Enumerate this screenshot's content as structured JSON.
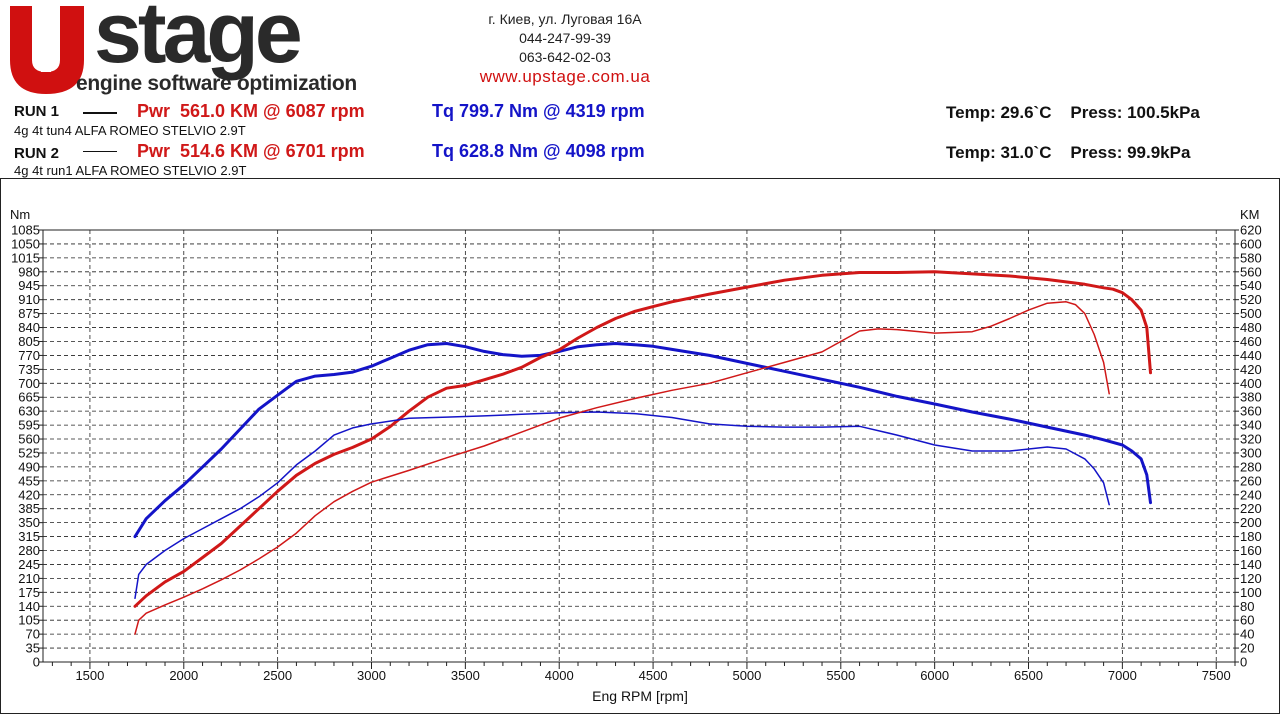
{
  "header": {
    "brand": "stage",
    "tagline": "engine software optimization",
    "address": "г. Киев, ул. Луговая 16А",
    "phone1": "044-247-99-39",
    "phone2": "063-642-02-03",
    "website": "www.upstage.com.ua"
  },
  "runs": [
    {
      "label": "RUN 1",
      "desc": "4g 4t tun4 ALFA ROMEO STELVIO 2.9T",
      "pwr": "Pwr  561.0 KM @ 6087 rpm",
      "tq": "Tq 799.7 Nm @ 4319 rpm",
      "temp": "Temp: 29.6`C    Press: 100.5kPa"
    },
    {
      "label": "RUN 2",
      "desc": "4g 4t run1 ALFA ROMEO STELVIO 2.9T",
      "pwr": "Pwr  514.6 KM @ 6701 rpm",
      "tq": "Tq 628.8 Nm @ 4098 rpm",
      "temp": "Temp: 31.0`C    Press: 99.9kPa"
    }
  ],
  "colors": {
    "power": "#d01818",
    "torque": "#1414c8"
  },
  "chart_data": {
    "type": "line",
    "xlabel": "Eng RPM [rpm]",
    "ylabel_left": "Nm",
    "ylabel_right": "KM",
    "xlim": [
      1250,
      7600
    ],
    "ylim_left": [
      0,
      1085
    ],
    "ylim_right": [
      0,
      620
    ],
    "x_ticks": [
      1500,
      2000,
      2500,
      3000,
      3500,
      4000,
      4500,
      5000,
      5500,
      6000,
      6500,
      7000,
      7500
    ],
    "y_left_ticks": [
      0,
      35,
      70,
      105,
      140,
      175,
      210,
      245,
      280,
      315,
      350,
      385,
      420,
      455,
      490,
      525,
      560,
      595,
      630,
      665,
      700,
      735,
      770,
      805,
      840,
      875,
      910,
      945,
      980,
      1015,
      1050,
      1085
    ],
    "y_right_ticks": [
      0,
      20,
      40,
      60,
      80,
      100,
      120,
      140,
      160,
      180,
      200,
      220,
      240,
      260,
      280,
      300,
      320,
      340,
      360,
      380,
      400,
      420,
      440,
      460,
      480,
      500,
      520,
      540,
      560,
      580,
      600,
      620
    ],
    "grid": true,
    "series": [
      {
        "name": "Run 1 Torque",
        "unit": "Nm",
        "axis": "left",
        "color": "#1414c8",
        "width": 3,
        "x": [
          1740,
          1800,
          1900,
          2000,
          2100,
          2200,
          2300,
          2400,
          2500,
          2600,
          2700,
          2800,
          2900,
          3000,
          3100,
          3200,
          3300,
          3400,
          3500,
          3600,
          3700,
          3800,
          3900,
          4000,
          4100,
          4200,
          4300,
          4400,
          4500,
          4600,
          4800,
          5000,
          5200,
          5400,
          5600,
          5800,
          6000,
          6200,
          6400,
          6600,
          6800,
          6900,
          7000,
          7050,
          7100,
          7130,
          7150
        ],
        "y": [
          315,
          360,
          405,
          445,
          490,
          535,
          585,
          635,
          670,
          705,
          718,
          722,
          728,
          743,
          763,
          783,
          797,
          800,
          792,
          780,
          772,
          768,
          770,
          780,
          792,
          797,
          800,
          797,
          793,
          785,
          770,
          750,
          730,
          710,
          690,
          667,
          648,
          628,
          610,
          590,
          570,
          558,
          545,
          530,
          510,
          470,
          400
        ]
      },
      {
        "name": "Run 1 Power",
        "unit": "KM",
        "axis": "right",
        "color": "#d01818",
        "width": 3,
        "x": [
          1740,
          1800,
          1900,
          2000,
          2100,
          2200,
          2300,
          2400,
          2500,
          2600,
          2700,
          2800,
          2900,
          3000,
          3100,
          3200,
          3300,
          3400,
          3500,
          3600,
          3700,
          3800,
          3900,
          4000,
          4100,
          4200,
          4300,
          4400,
          4500,
          4600,
          4800,
          5000,
          5200,
          5400,
          5600,
          5800,
          6000,
          6200,
          6400,
          6600,
          6800,
          6900,
          6950,
          7000,
          7050,
          7100,
          7130,
          7150
        ],
        "y": [
          80,
          95,
          115,
          130,
          150,
          170,
          195,
          220,
          245,
          268,
          285,
          298,
          308,
          320,
          338,
          360,
          380,
          393,
          397,
          405,
          413,
          423,
          437,
          448,
          465,
          480,
          493,
          503,
          510,
          517,
          528,
          538,
          548,
          555,
          559,
          559,
          560,
          557,
          554,
          549,
          542,
          537,
          535,
          530,
          520,
          505,
          480,
          415
        ]
      },
      {
        "name": "Run 2 Torque",
        "unit": "Nm",
        "axis": "left",
        "color": "#1414c8",
        "width": 1.5,
        "x": [
          1740,
          1760,
          1800,
          1900,
          2000,
          2100,
          2200,
          2300,
          2400,
          2500,
          2600,
          2700,
          2800,
          2900,
          3000,
          3200,
          3400,
          3600,
          3800,
          4000,
          4200,
          4400,
          4600,
          4800,
          5000,
          5200,
          5400,
          5600,
          5800,
          6000,
          6200,
          6400,
          6600,
          6700,
          6800,
          6850,
          6900,
          6930
        ],
        "y": [
          160,
          220,
          245,
          280,
          310,
          335,
          360,
          385,
          415,
          450,
          495,
          530,
          570,
          588,
          598,
          612,
          615,
          618,
          622,
          626,
          628,
          624,
          614,
          598,
          592,
          590,
          590,
          592,
          570,
          545,
          530,
          530,
          540,
          535,
          510,
          485,
          450,
          395
        ]
      },
      {
        "name": "Run 2 Power",
        "unit": "KM",
        "axis": "right",
        "color": "#d01818",
        "width": 1.5,
        "x": [
          1740,
          1760,
          1800,
          1900,
          2000,
          2100,
          2200,
          2300,
          2400,
          2500,
          2600,
          2700,
          2800,
          2900,
          3000,
          3200,
          3400,
          3600,
          3800,
          4000,
          4200,
          4400,
          4600,
          4800,
          5000,
          5200,
          5400,
          5600,
          5700,
          5800,
          6000,
          6200,
          6300,
          6400,
          6500,
          6600,
          6700,
          6750,
          6800,
          6850,
          6900,
          6930
        ],
        "y": [
          40,
          60,
          70,
          82,
          93,
          105,
          118,
          132,
          148,
          165,
          185,
          210,
          230,
          245,
          258,
          275,
          293,
          310,
          330,
          350,
          365,
          378,
          390,
          400,
          415,
          430,
          445,
          475,
          478,
          477,
          472,
          474,
          482,
          493,
          505,
          515,
          517,
          513,
          500,
          470,
          430,
          385
        ]
      }
    ]
  }
}
